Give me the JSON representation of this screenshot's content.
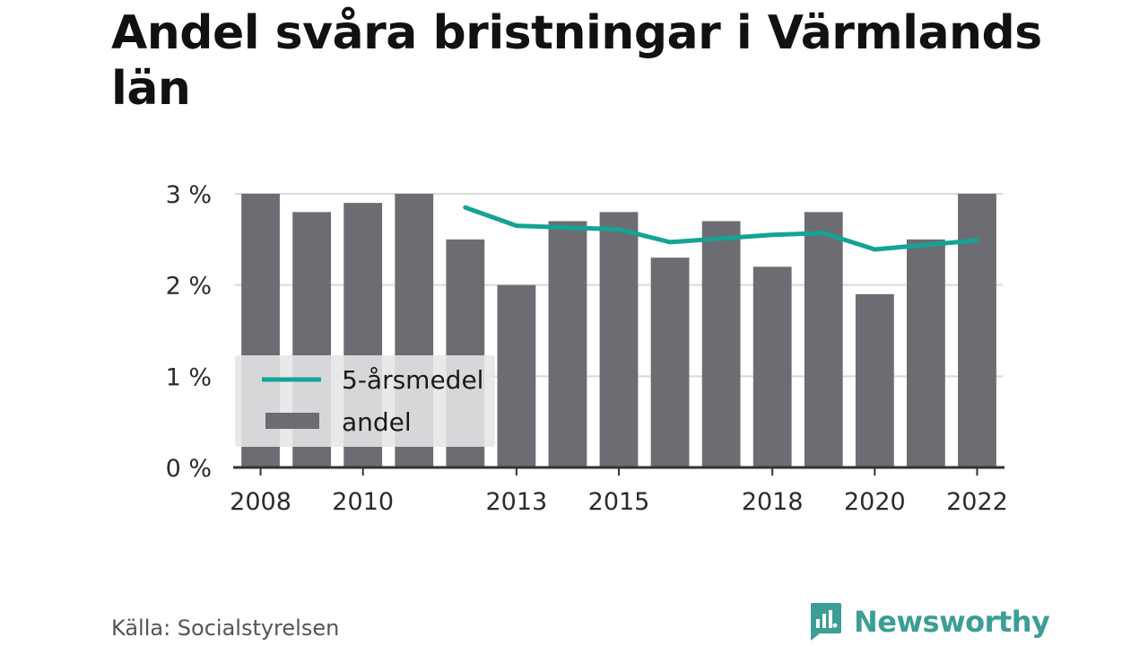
{
  "title": "Andel svåra bristningar i Värmlands län",
  "source": "Källa: Socialstyrelsen",
  "brand": {
    "name": "Newsworthy",
    "icon": "newsworthy-logo-icon",
    "color": "#3c9e95"
  },
  "colors": {
    "bar": "#6d6c72",
    "line": "#14a395",
    "grid": "#d9d9d9",
    "axis": "#333333",
    "legend_bg": "#e6e6e8"
  },
  "chart_data": {
    "type": "bar",
    "title": "Andel svåra bristningar i Värmlands län",
    "xlabel": "",
    "ylabel": "",
    "x": [
      2008,
      2009,
      2010,
      2011,
      2012,
      2013,
      2014,
      2015,
      2016,
      2017,
      2018,
      2019,
      2020,
      2021,
      2022
    ],
    "x_ticks": [
      "2008",
      "2010",
      "2013",
      "2015",
      "2018",
      "2020",
      "2022"
    ],
    "y_ticks": [
      "0 %",
      "1 %",
      "2 %",
      "3 %"
    ],
    "ylim": [
      0,
      3
    ],
    "grid": true,
    "legend_position": "bottom-left",
    "series": [
      {
        "name": "andel",
        "type": "bar",
        "values": [
          3.0,
          2.8,
          2.9,
          3.0,
          2.5,
          2.0,
          2.7,
          2.8,
          2.3,
          2.7,
          2.2,
          2.8,
          1.9,
          2.5,
          3.0
        ]
      },
      {
        "name": "5-årsmedel",
        "type": "line",
        "values": [
          null,
          null,
          null,
          null,
          2.85,
          2.65,
          2.63,
          2.61,
          2.47,
          2.51,
          2.55,
          2.57,
          2.39,
          2.44,
          2.49
        ]
      }
    ]
  }
}
